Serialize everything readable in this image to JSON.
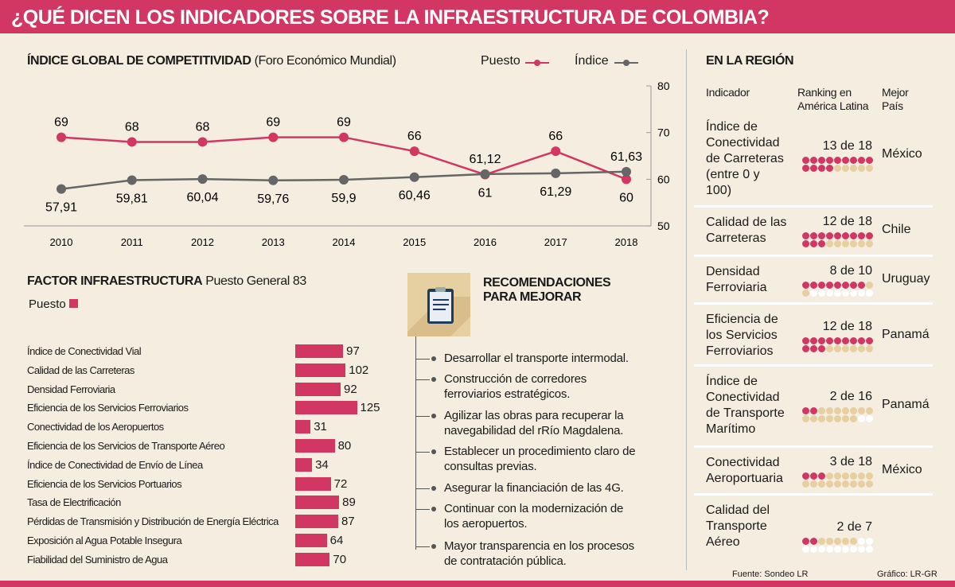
{
  "title": "¿QUÉ DICEN LOS INDICADORES SOBRE LA INFRAESTRUCTURA DE COLOMBIA?",
  "colors": {
    "accent": "#d23764",
    "index": "#666666",
    "tan": "#e6cfa0",
    "bg": "#f5ede0"
  },
  "chart_data": [
    {
      "type": "line",
      "title": "ÍNDICE GLOBAL DE COMPETITIVIDAD",
      "subtitle": "(Foro Económico Mundial)",
      "x": [
        "2010",
        "2011",
        "2012",
        "2013",
        "2014",
        "2015",
        "2016",
        "2017",
        "2018"
      ],
      "ylim": [
        50,
        80
      ],
      "yticks": [
        "50",
        "60",
        "70",
        "80"
      ],
      "legend_position": "top-right",
      "series": [
        {
          "name": "Puesto",
          "color": "#d23764",
          "values": [
            69,
            68,
            68,
            69,
            69,
            66,
            61,
            66,
            60
          ],
          "labels": [
            "69",
            "68",
            "68",
            "69",
            "69",
            "66",
            "61",
            "66",
            "60"
          ]
        },
        {
          "name": "Índice",
          "color": "#666666",
          "values": [
            57.91,
            59.81,
            60.04,
            59.76,
            59.9,
            60.46,
            61.12,
            61.29,
            61.63
          ],
          "labels": [
            "57,91",
            "59,81",
            "60,04",
            "59,76",
            "59,9",
            "60,46",
            "61,12",
            "61,29",
            "61,63"
          ]
        }
      ]
    },
    {
      "type": "bar",
      "title": "FACTOR INFRAESTRUCTURA",
      "subtitle": "Puesto General 83",
      "legend": "Puesto",
      "categories": [
        "Índice de Conectividad Vial",
        "Calidad de las Carreteras",
        "Densidad Ferroviaria",
        "Eficiencia de los Servicios Ferroviarios",
        "Conectividad de los Aeropuertos",
        "Eficiencia de los Servicios de Transporte Aéreo",
        "Índice de Conectividad de Envío de Línea",
        "Eficiencia de los Servicios Portuarios",
        "Tasa de Electrificación",
        "Pérdidas de Transmisión y Distribución de Energía Eléctrica",
        "Exposición al Agua Potable Insegura",
        "Fiabilidad del Suministro de Agua"
      ],
      "values": [
        97,
        102,
        92,
        125,
        31,
        80,
        34,
        72,
        89,
        87,
        64,
        70
      ]
    }
  ],
  "recs": {
    "title1": "RECOMENDACIONES",
    "title2": "PARA MEJORAR",
    "items": [
      [
        "Desarrollar el transporte intermodal."
      ],
      [
        "Construcción de corredores",
        "ferroviarios estratégicos."
      ],
      [
        "Agilizar las obras para recuperar la",
        "navegabilidad del rRío Magdalena."
      ],
      [
        "Establecer un procedimiento claro de",
        "consultas previas."
      ],
      [
        "Asegurar la financiación de las 4G."
      ],
      [
        "Continuar con la modernización de",
        "los aeropuertos."
      ],
      [
        "Mayor transparencia en los procesos",
        "de contratación pública."
      ]
    ]
  },
  "region": {
    "title": "EN LA REGIÓN",
    "col1": "Indicador",
    "col2a": "Ranking en",
    "col2b": "América Latina",
    "col3a": "Mejor",
    "col3b": "País",
    "rows": [
      {
        "name": [
          "Índice de",
          "Conectividad",
          "de Carreteras",
          "(entre 0 y",
          "100)"
        ],
        "rank": "13 de 18",
        "pos": 13,
        "total": 18,
        "best": "México"
      },
      {
        "name": [
          "Calidad de las",
          "Carreteras"
        ],
        "rank": "12 de 18",
        "pos": 12,
        "total": 18,
        "best": "Chile"
      },
      {
        "name": [
          "Densidad",
          "Ferroviaria"
        ],
        "rank": "8 de 10",
        "pos": 8,
        "total": 10,
        "best": "Uruguay"
      },
      {
        "name": [
          "Eficiencia de",
          "los Servicios",
          "Ferroviarios"
        ],
        "rank": "12 de 18",
        "pos": 12,
        "total": 18,
        "best": "Panamá"
      },
      {
        "name": [
          "Índice de",
          "Conectividad",
          "de Transporte",
          "Marítimo"
        ],
        "rank": "2 de 16",
        "pos": 2,
        "total": 16,
        "best": "Panamá"
      },
      {
        "name": [
          "Conectividad",
          "Aeroportuaria"
        ],
        "rank": "3 de 18",
        "pos": 3,
        "total": 18,
        "best": "México"
      },
      {
        "name": [
          "Calidad del",
          "Transporte",
          "Aéreo"
        ],
        "rank": "2 de 7",
        "pos": 2,
        "total": 7,
        "best": ""
      }
    ]
  },
  "source": "Fuente: Sondeo LR",
  "credit": "Gráfico: LR-GR"
}
